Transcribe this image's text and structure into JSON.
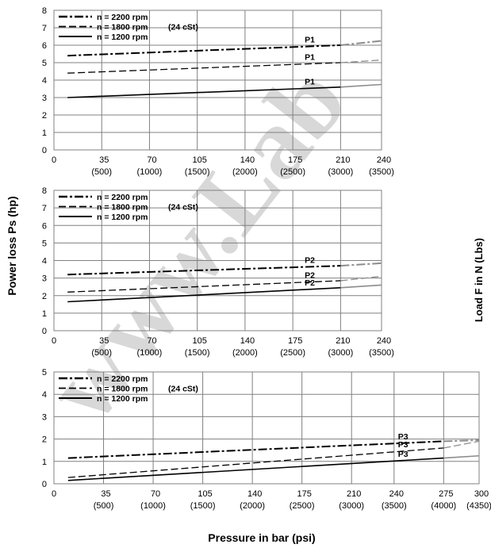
{
  "y_axis_title": "Power loss Ps (hp)",
  "x_axis_title": "Pressure in bar (psi)",
  "right_axis_fragment": "Load F in N (Lbs)",
  "watermark": "www.Lab",
  "colors": {
    "solid": "#000000",
    "faded": "#8c8c8c",
    "grid": "#808080",
    "watermark": "#c8c8c8"
  },
  "chart_data": [
    {
      "type": "line",
      "xlabel": "",
      "ylabel": "",
      "ylim": [
        0,
        8
      ],
      "yticks": [
        0,
        1,
        2,
        3,
        4,
        5,
        6,
        7,
        8
      ],
      "xticks": [
        0,
        35,
        70,
        105,
        140,
        175,
        210,
        240
      ],
      "psi_ticks": [
        "(500)",
        "(1000)",
        "(1500)",
        "(2000)",
        "(2500)",
        "(3000)",
        "(3500)"
      ],
      "xlim": [
        0,
        240
      ],
      "legend_note": "(24 cSt)",
      "legend_placement": "top-left",
      "series": [
        {
          "name": "n = 2200 rpm",
          "style": "dashdot",
          "x": [
            10,
            210,
            240
          ],
          "values": [
            5.4,
            6.0,
            6.25
          ],
          "faded_from": 210
        },
        {
          "name": "n = 1800 rpm",
          "style": "dash",
          "x": [
            10,
            210,
            240
          ],
          "values": [
            4.4,
            5.0,
            5.15
          ],
          "faded_from": 210
        },
        {
          "name": "n = 1200 rpm",
          "style": "solid",
          "x": [
            10,
            210,
            240
          ],
          "values": [
            3.0,
            3.6,
            3.75
          ],
          "faded_from": 210
        }
      ],
      "curve_labels": [
        "P1",
        "P1",
        "P1"
      ]
    },
    {
      "type": "line",
      "xlabel": "",
      "ylabel": "",
      "ylim": [
        0,
        8
      ],
      "yticks": [
        0,
        1,
        2,
        3,
        4,
        5,
        6,
        7,
        8
      ],
      "xticks": [
        0,
        35,
        70,
        105,
        140,
        175,
        210,
        240
      ],
      "psi_ticks": [
        "(500)",
        "(1000)",
        "(1500)",
        "(2000)",
        "(2500)",
        "(3000)",
        "(3500)"
      ],
      "xlim": [
        0,
        240
      ],
      "legend_note": "(24 cSt)",
      "legend_placement": "top-left",
      "series": [
        {
          "name": "n = 2200 rpm",
          "style": "dashdot",
          "x": [
            10,
            210,
            240
          ],
          "values": [
            3.2,
            3.7,
            3.85
          ],
          "faded_from": 210
        },
        {
          "name": "n = 1800 rpm",
          "style": "dash",
          "x": [
            10,
            210,
            240
          ],
          "values": [
            2.2,
            2.85,
            3.1
          ],
          "faded_from": 210
        },
        {
          "name": "n = 1200 rpm",
          "style": "solid",
          "x": [
            10,
            210,
            240
          ],
          "values": [
            1.65,
            2.45,
            2.6
          ],
          "faded_from": 210
        }
      ],
      "curve_labels": [
        "P2",
        "P2",
        "P2"
      ]
    },
    {
      "type": "line",
      "xlabel": "",
      "ylabel": "",
      "ylim": [
        0,
        5
      ],
      "yticks": [
        0,
        1,
        2,
        3,
        4,
        5
      ],
      "xticks": [
        0,
        35,
        70,
        105,
        140,
        175,
        210,
        240,
        275,
        300
      ],
      "psi_ticks": [
        "(500)",
        "(1000)",
        "(1500)",
        "(2000)",
        "(2500)",
        "(3000)",
        "(3500)",
        "(4000)",
        "(4350)"
      ],
      "xlim": [
        0,
        300
      ],
      "legend_note": "(24 cSt)",
      "legend_placement": "top-left",
      "series": [
        {
          "name": "n = 2200 rpm",
          "style": "dashdot",
          "x": [
            10,
            275,
            300
          ],
          "values": [
            1.15,
            1.9,
            1.95
          ],
          "faded_from": 275
        },
        {
          "name": "n = 1800 rpm",
          "style": "dash",
          "x": [
            10,
            275,
            300
          ],
          "values": [
            0.28,
            1.6,
            1.9
          ],
          "faded_from": 275
        },
        {
          "name": "n = 1200 rpm",
          "style": "solid",
          "x": [
            10,
            275,
            300
          ],
          "values": [
            0.15,
            1.15,
            1.25
          ],
          "faded_from": 275
        }
      ],
      "curve_labels": [
        "P3",
        "P3",
        "P3"
      ]
    }
  ]
}
